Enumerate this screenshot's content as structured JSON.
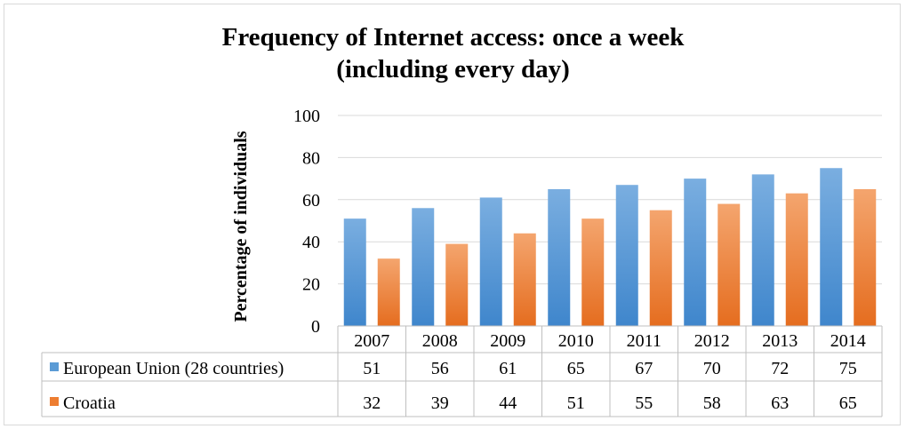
{
  "chart_data": {
    "type": "bar",
    "title_line1": "Frequency of Internet access: once a week",
    "title_line2": "(including every day)",
    "ylabel": "Percentage of individuals",
    "xlabel": "",
    "categories": [
      "2007",
      "2008",
      "2009",
      "2010",
      "2011",
      "2012",
      "2013",
      "2014"
    ],
    "ylim": [
      0,
      100
    ],
    "yticks": [
      "0",
      "20",
      "40",
      "60",
      "80",
      "100"
    ],
    "grid": true,
    "legend": "data-table",
    "series": [
      {
        "name": "European Union (28 countries)",
        "values": [
          51,
          56,
          61,
          65,
          67,
          70,
          72,
          75
        ],
        "color": "#5b9bd5"
      },
      {
        "name": "Croatia",
        "values": [
          32,
          39,
          44,
          51,
          55,
          58,
          63,
          65
        ],
        "color": "#ed7d31"
      }
    ]
  }
}
